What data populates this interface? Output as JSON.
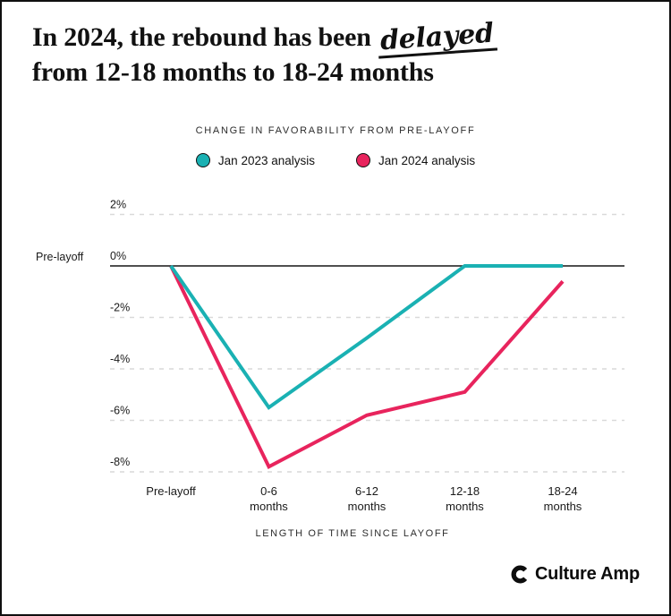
{
  "title": {
    "line1_prefix": "In 2024, the rebound has been",
    "highlight": "delayed",
    "line2": "from 12-18 months to 18-24 months"
  },
  "chart_data": {
    "type": "line",
    "title": "CHANGE IN FAVORABILITY FROM PRE-LAYOFF",
    "xlabel": "LENGTH OF TIME SINCE LAYOFF",
    "ylabel": "",
    "categories": [
      "Pre-layoff",
      "0-6 months",
      "6-12 months",
      "12-18 months",
      "18-24 months"
    ],
    "x_tick_lines": [
      [
        "Pre-layoff"
      ],
      [
        "0-6",
        "months"
      ],
      [
        "6-12",
        "months"
      ],
      [
        "12-18",
        "months"
      ],
      [
        "18-24",
        "months"
      ]
    ],
    "yticks": [
      2,
      0,
      -2,
      -4,
      -6,
      -8
    ],
    "ytick_labels": [
      "2%",
      "0%",
      "-2%",
      "-4%",
      "-6%",
      "-8%"
    ],
    "ylim": [
      -8.8,
      2.6
    ],
    "zero_line_label": "Pre-layoff",
    "grid": "dashed-horizontal",
    "legend_position": "top",
    "series": [
      {
        "name": "Jan 2023 analysis",
        "color": "#1AB1B3",
        "values": [
          0,
          -5.5,
          -2.8,
          0,
          0
        ]
      },
      {
        "name": "Jan 2024 analysis",
        "color": "#E8245D",
        "values": [
          0,
          -7.8,
          -5.8,
          -4.9,
          -0.6
        ]
      }
    ]
  },
  "footer": {
    "brand": "Culture Amp"
  },
  "colors": {
    "teal": "#1AB1B3",
    "pink": "#E8245D",
    "grid": "#D9D9D9",
    "zero_line": "#161616",
    "text": "#1A1A1A",
    "subtitle_text": "#2D2D2D",
    "background": "#FFFFFF",
    "border": "#101010"
  }
}
